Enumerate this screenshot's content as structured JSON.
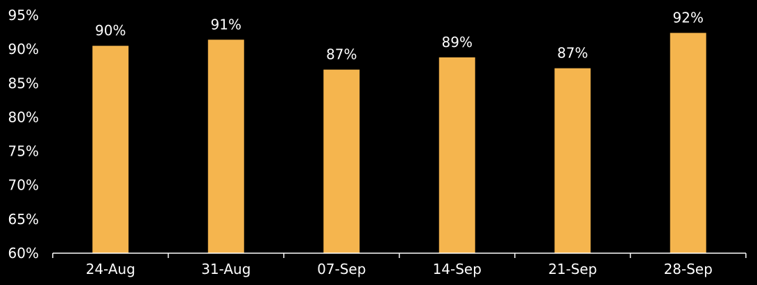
{
  "chart_data": {
    "type": "bar",
    "title": "",
    "xlabel": "",
    "ylabel": "",
    "categories": [
      "24-Aug",
      "31-Aug",
      "07-Sep",
      "14-Sep",
      "21-Sep",
      "28-Sep"
    ],
    "values": [
      90.5,
      91.4,
      87.0,
      88.8,
      87.2,
      92.4
    ],
    "value_labels": [
      "90%",
      "91%",
      "87%",
      "89%",
      "87%",
      "92%"
    ],
    "ylim": [
      60,
      95
    ],
    "yticks": [
      60,
      65,
      70,
      75,
      80,
      85,
      90,
      95
    ],
    "ytick_labels": [
      "60%",
      "65%",
      "70%",
      "75%",
      "80%",
      "85%",
      "90%",
      "95%"
    ],
    "grid": false,
    "legend": "none",
    "colors": {
      "background": "#000000",
      "bar": "#F5B54E",
      "text": "#FFFFFF",
      "axis": "#FFFFFF"
    }
  }
}
